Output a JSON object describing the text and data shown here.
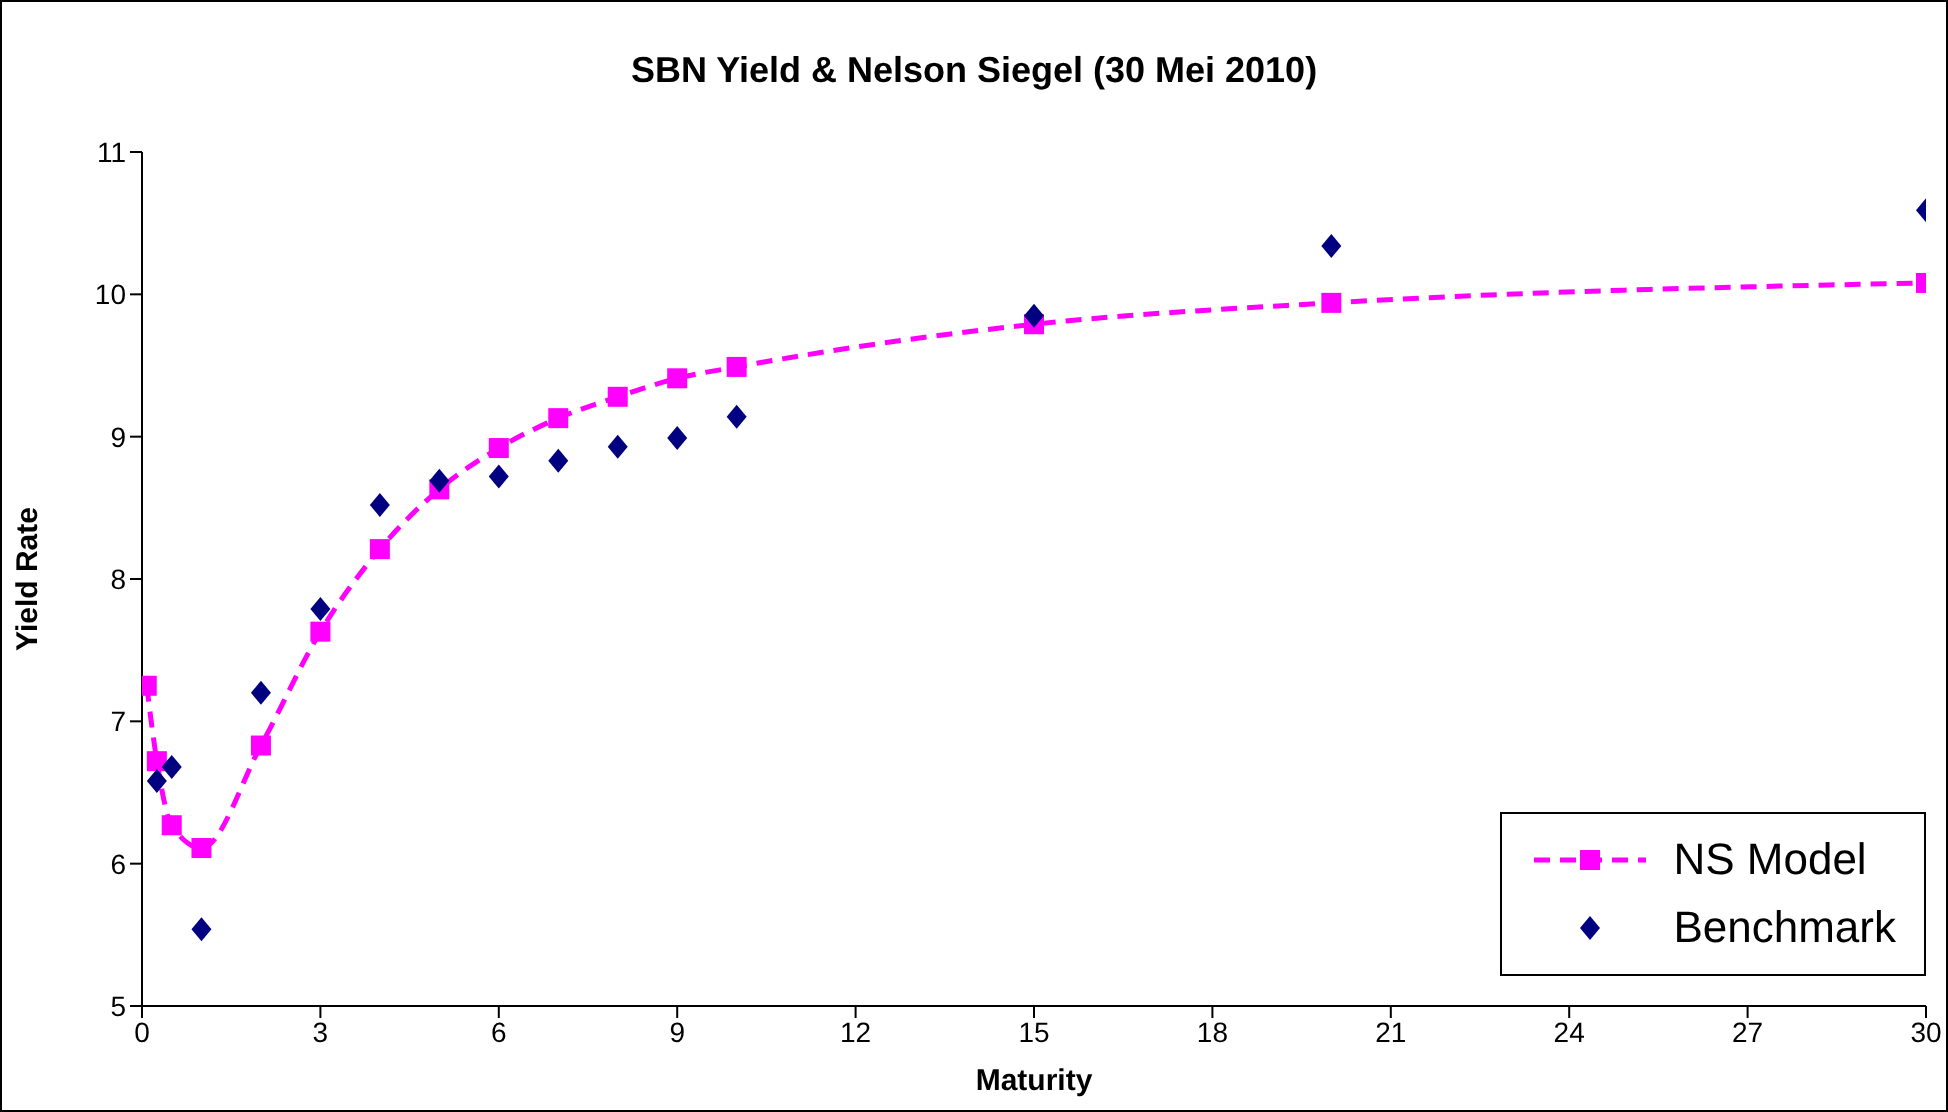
{
  "chart_data": {
    "type": "line",
    "title": "SBN Yield & Nelson Siegel (30 Mei 2010)",
    "xlabel": "Maturity",
    "ylabel": "Yield Rate",
    "xlim": [
      0,
      30
    ],
    "xticks": [
      0,
      3,
      6,
      9,
      12,
      15,
      18,
      21,
      24,
      27,
      30
    ],
    "ylim": [
      5,
      11
    ],
    "yticks": [
      5,
      6,
      7,
      8,
      9,
      10,
      11
    ],
    "grid": false,
    "legend": "bottom right",
    "series": [
      {
        "name": "NS Model",
        "type": "line",
        "color": "#ff00ff",
        "marker": "square",
        "line_style": "dashed",
        "x": [
          0.08,
          0.25,
          0.5,
          1,
          2,
          3,
          4,
          5,
          6,
          7,
          8,
          9,
          10,
          15,
          20,
          30
        ],
        "values": [
          7.25,
          6.72,
          6.27,
          6.11,
          6.83,
          7.63,
          8.21,
          8.63,
          8.92,
          9.13,
          9.28,
          9.41,
          9.49,
          9.79,
          9.94,
          10.08
        ]
      },
      {
        "name": "Benchmark",
        "type": "scatter",
        "color": "#000080",
        "marker": "diamond",
        "x": [
          0.25,
          0.5,
          1,
          2,
          3,
          4,
          5,
          6,
          7,
          8,
          9,
          10,
          15,
          20,
          30
        ],
        "values": [
          6.58,
          6.68,
          5.54,
          7.2,
          7.79,
          8.52,
          8.69,
          8.72,
          8.83,
          8.93,
          8.99,
          9.14,
          9.85,
          10.34,
          10.59
        ]
      }
    ]
  }
}
